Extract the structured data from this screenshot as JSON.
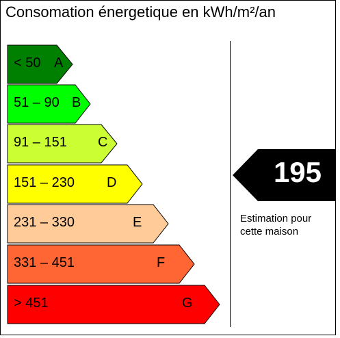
{
  "title": "Consomation énergetique en kWh/m²/an",
  "classes": [
    {
      "range": "< 50",
      "letter": "A",
      "color": "#008000"
    },
    {
      "range": "51 – 90",
      "letter": "B",
      "color": "#00ff00"
    },
    {
      "range": "91 – 151",
      "letter": "C",
      "color": "#ccff33"
    },
    {
      "range": "151 – 230",
      "letter": "D",
      "color": "#ffff00"
    },
    {
      "range": "231 – 330",
      "letter": "E",
      "color": "#ffcc99"
    },
    {
      "range": "331 – 451",
      "letter": "F",
      "color": "#ff6633"
    },
    {
      "range": "> 451",
      "letter": "G",
      "color": "#ff0000"
    }
  ],
  "indicator": {
    "value": "195",
    "color": "#000000",
    "caption_line1": "Estimation pour",
    "caption_line2": "cette maison"
  }
}
